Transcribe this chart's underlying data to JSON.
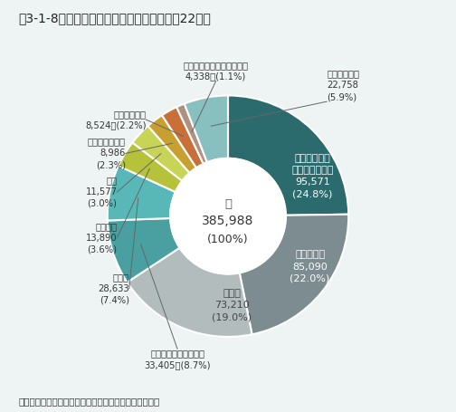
{
  "title": "図3-1-8　産業廃棄物の業種別排出量（平成22年）",
  "source": "資料：環境省「産業廃棄物排出・処理状況調査報告書」",
  "segments": [
    {
      "label": "電気・ガス・\n熱供給・水道業",
      "value": 95571,
      "val_str": "95,571",
      "pct": "24.8%",
      "color": "#2b6b6e",
      "label_inside": true,
      "text_color": "white"
    },
    {
      "label": "農業、林業",
      "value": 85090,
      "val_str": "85,090",
      "pct": "22.0%",
      "color": "#7c8c90",
      "label_inside": true,
      "text_color": "white"
    },
    {
      "label": "建設業",
      "value": 73210,
      "val_str": "73,210",
      "pct": "19.0%",
      "color": "#b2bcbc",
      "label_inside": true,
      "text_color": "#444444"
    },
    {
      "label": "パルプ・紙・紙加工品",
      "value": 33405,
      "val_str": "33,405",
      "pct": "8.7%",
      "color": "#4a9fa0",
      "label_inside": false,
      "text_color": "#333333"
    },
    {
      "label": "鉄鋼業",
      "value": 28633,
      "val_str": "28,633",
      "pct": "7.4%",
      "color": "#58b8b8",
      "label_inside": false,
      "text_color": "#333333"
    },
    {
      "label": "化学工業",
      "value": 13890,
      "val_str": "13,890",
      "pct": "3.6%",
      "color": "#b5c23a",
      "label_inside": false,
      "text_color": "#333333"
    },
    {
      "label": "鉱業",
      "value": 11577,
      "val_str": "11,577",
      "pct": "3.0%",
      "color": "#c8d455",
      "label_inside": false,
      "text_color": "#333333"
    },
    {
      "label": "窯業・土石製品",
      "value": 8986,
      "val_str": "8,986",
      "pct": "2.3%",
      "color": "#c8a030",
      "label_inside": false,
      "text_color": "#333333"
    },
    {
      "label": "食料品製造業",
      "value": 8524,
      "val_str": "8,524",
      "pct": "2.2%",
      "color": "#c87038",
      "label_inside": false,
      "text_color": "#333333"
    },
    {
      "label": "電子・電気・通信機械器具",
      "value": 4338,
      "val_str": "4,338",
      "pct": "1.1%",
      "color": "#b09080",
      "label_inside": false,
      "text_color": "#333333"
    },
    {
      "label": "その他の業種",
      "value": 22758,
      "val_str": "22,758",
      "pct": "5.9%",
      "color": "#88c0c0",
      "label_inside": false,
      "text_color": "#333333"
    }
  ],
  "bg_color": "#eef3f3",
  "title_color": "#222222",
  "text_color": "#333333"
}
